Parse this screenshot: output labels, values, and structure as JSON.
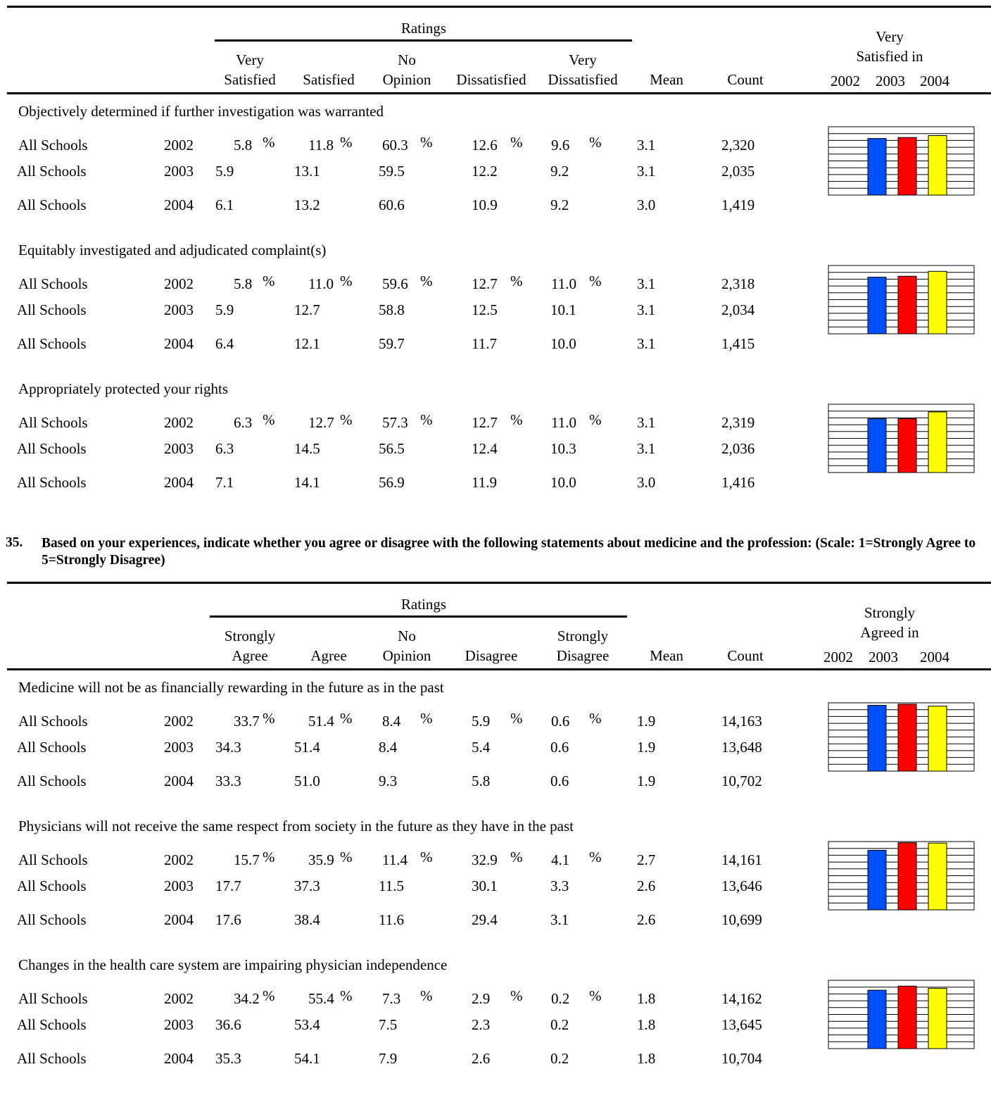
{
  "colors": {
    "y2002": "#0050ff",
    "y2003": "#ff0000",
    "y2004": "#ffff00"
  },
  "question": {
    "number": "35.",
    "text": "Based on your experiences, indicate whether you agree or disagree with the following statements about medicine and the profession: (Scale: 1=Strongly Agree to 5=Strongly Disagree)"
  },
  "table1": {
    "ratings_label": "Ratings",
    "columns": [
      "Very\nSatisfied",
      "Satisfied",
      "No\nOpinion",
      "Dissatisfied",
      "Very\nDissatisfied",
      "Mean",
      "Count"
    ],
    "chart_header": "Very\nSatisfied in",
    "chart_years": [
      "2002",
      "2003",
      "2004"
    ],
    "sections": [
      {
        "title": "Objectively determined if further investigation was warranted",
        "rows": [
          {
            "label": "All Schools",
            "year": "2002",
            "v": [
              "5.8",
              "11.8",
              "60.3",
              "12.6",
              "9.6"
            ],
            "mean": "3.1",
            "count": "2,320"
          },
          {
            "label": "All Schools",
            "year": "2003",
            "v": [
              "5.9",
              "13.1",
              "59.5",
              "12.2",
              "9.2"
            ],
            "mean": "3.1",
            "count": "2,035"
          },
          {
            "label": "All Schools",
            "year": "2004",
            "v": [
              "6.1",
              "13.2",
              "60.6",
              "10.9",
              "9.2"
            ],
            "mean": "3.0",
            "count": "1,419"
          }
        ]
      },
      {
        "title": "Equitably investigated and adjudicated complaint(s)",
        "rows": [
          {
            "label": "All Schools",
            "year": "2002",
            "v": [
              "5.8",
              "11.0",
              "59.6",
              "12.7",
              "11.0"
            ],
            "mean": "3.1",
            "count": "2,318"
          },
          {
            "label": "All Schools",
            "year": "2003",
            "v": [
              "5.9",
              "12.7",
              "58.8",
              "12.5",
              "10.1"
            ],
            "mean": "3.1",
            "count": "2,034"
          },
          {
            "label": "All Schools",
            "year": "2004",
            "v": [
              "6.4",
              "12.1",
              "59.7",
              "11.7",
              "10.0"
            ],
            "mean": "3.1",
            "count": "1,415"
          }
        ]
      },
      {
        "title": "Appropriately protected your rights",
        "rows": [
          {
            "label": "All Schools",
            "year": "2002",
            "v": [
              "6.3",
              "12.7",
              "57.3",
              "12.7",
              "11.0"
            ],
            "mean": "3.1",
            "count": "2,319"
          },
          {
            "label": "All Schools",
            "year": "2003",
            "v": [
              "6.3",
              "14.5",
              "56.5",
              "12.4",
              "10.3"
            ],
            "mean": "3.1",
            "count": "2,036"
          },
          {
            "label": "All Schools",
            "year": "2004",
            "v": [
              "7.1",
              "14.1",
              "56.9",
              "11.9",
              "10.0"
            ],
            "mean": "3.0",
            "count": "1,416"
          }
        ]
      }
    ]
  },
  "table2": {
    "ratings_label": "Ratings",
    "columns": [
      "Strongly\nAgree",
      "Agree",
      "No\nOpinion",
      "Disagree",
      "Strongly\nDisagree",
      "Mean",
      "Count"
    ],
    "chart_header": "Strongly\nAgreed in",
    "chart_years": [
      "2002",
      "2003",
      "2004"
    ],
    "sections": [
      {
        "title": "Medicine will not be as financially rewarding in the future as in the past",
        "rows": [
          {
            "label": "All Schools",
            "year": "2002",
            "v": [
              "33.7",
              "51.4",
              "8.4",
              "5.9",
              "0.6"
            ],
            "mean": "1.9",
            "count": "14,163"
          },
          {
            "label": "All Schools",
            "year": "2003",
            "v": [
              "34.3",
              "51.4",
              "8.4",
              "5.4",
              "0.6"
            ],
            "mean": "1.9",
            "count": "13,648"
          },
          {
            "label": "All Schools",
            "year": "2004",
            "v": [
              "33.3",
              "51.0",
              "9.3",
              "5.8",
              "0.6"
            ],
            "mean": "1.9",
            "count": "10,702"
          }
        ]
      },
      {
        "title": "Physicians will not receive the same respect from society in the future as they have in the past",
        "rows": [
          {
            "label": "All Schools",
            "year": "2002",
            "v": [
              "15.7",
              "35.9",
              "11.4",
              "32.9",
              "4.1"
            ],
            "mean": "2.7",
            "count": "14,161"
          },
          {
            "label": "All Schools",
            "year": "2003",
            "v": [
              "17.7",
              "37.3",
              "11.5",
              "30.1",
              "3.3"
            ],
            "mean": "2.6",
            "count": "13,646"
          },
          {
            "label": "All Schools",
            "year": "2004",
            "v": [
              "17.6",
              "38.4",
              "11.6",
              "29.4",
              "3.1"
            ],
            "mean": "2.6",
            "count": "10,699"
          }
        ]
      },
      {
        "title": "Changes in the health care system are impairing physician independence",
        "rows": [
          {
            "label": "All Schools",
            "year": "2002",
            "v": [
              "34.2",
              "55.4",
              "7.3",
              "2.9",
              "0.2"
            ],
            "mean": "1.8",
            "count": "14,162"
          },
          {
            "label": "All Schools",
            "year": "2003",
            "v": [
              "36.6",
              "53.4",
              "7.5",
              "2.3",
              "0.2"
            ],
            "mean": "1.8",
            "count": "13,645"
          },
          {
            "label": "All Schools",
            "year": "2004",
            "v": [
              "35.3",
              "54.1",
              "7.9",
              "2.6",
              "0.2"
            ],
            "mean": "1.8",
            "count": "10,704"
          }
        ]
      }
    ]
  },
  "chart_data": [
    {
      "type": "bar",
      "categories": [
        "2002",
        "2003",
        "2004"
      ],
      "values": [
        5.8,
        5.9,
        6.1
      ],
      "ylim": [
        0,
        7
      ]
    },
    {
      "type": "bar",
      "categories": [
        "2002",
        "2003",
        "2004"
      ],
      "values": [
        5.8,
        5.9,
        6.4
      ],
      "ylim": [
        0,
        7
      ]
    },
    {
      "type": "bar",
      "categories": [
        "2002",
        "2003",
        "2004"
      ],
      "values": [
        6.3,
        6.3,
        7.1
      ],
      "ylim": [
        0,
        8
      ]
    },
    {
      "type": "bar",
      "categories": [
        "2002",
        "2003",
        "2004"
      ],
      "values": [
        33.7,
        34.3,
        33.3
      ],
      "ylim": [
        0,
        35
      ]
    },
    {
      "type": "bar",
      "categories": [
        "2002",
        "2003",
        "2004"
      ],
      "values": [
        15.7,
        17.7,
        17.6
      ],
      "ylim": [
        0,
        18
      ]
    },
    {
      "type": "bar",
      "categories": [
        "2002",
        "2003",
        "2004"
      ],
      "values": [
        34.2,
        36.6,
        35.3
      ],
      "ylim": [
        0,
        40
      ]
    }
  ]
}
